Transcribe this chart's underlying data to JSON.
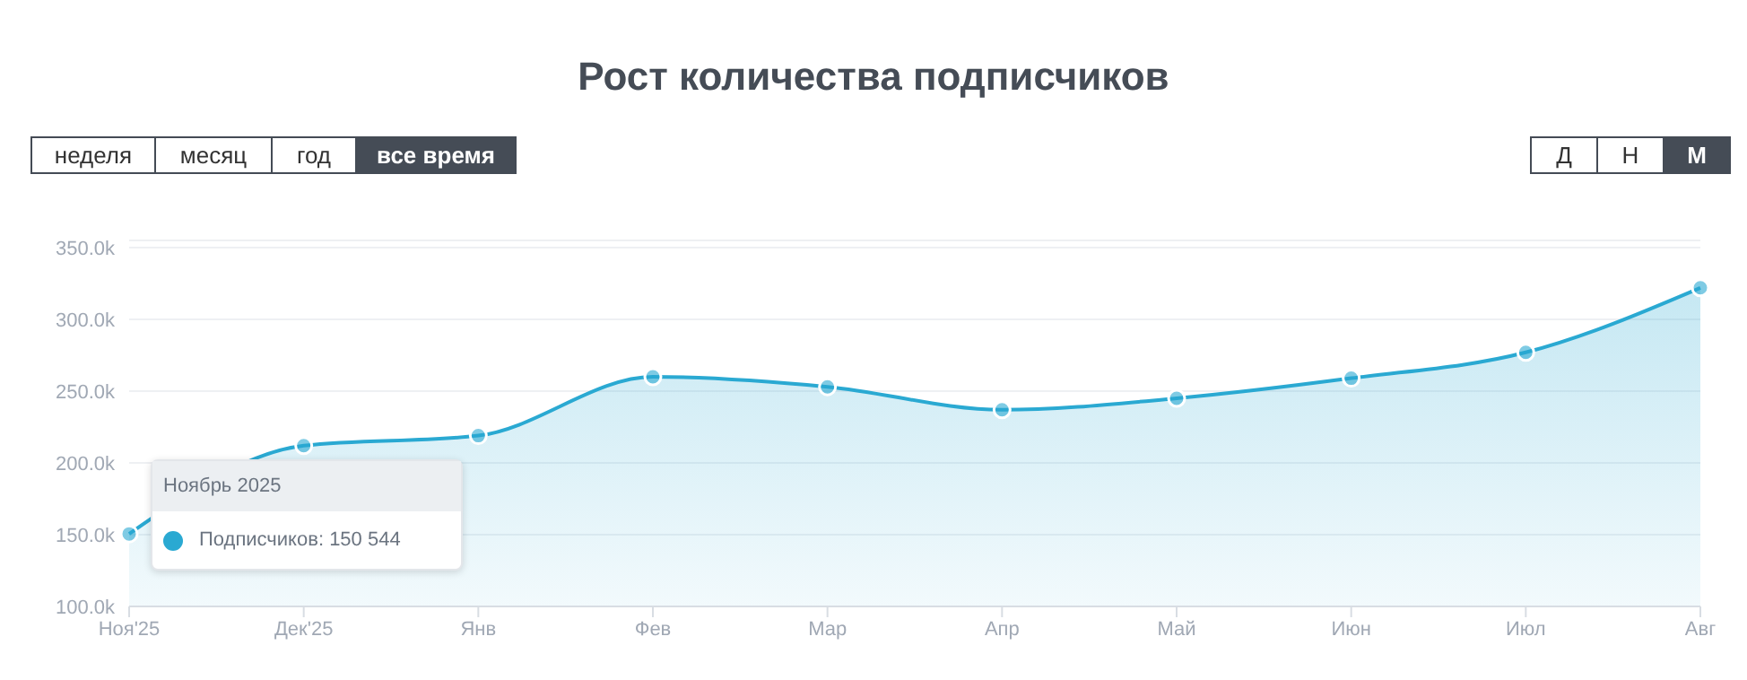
{
  "chart_data": {
    "type": "area",
    "title": "Рост количества подписчиков",
    "categories": [
      "Ноя'25",
      "Дек'25",
      "Янв",
      "Фев",
      "Мар",
      "Апр",
      "Май",
      "Июн",
      "Июл",
      "Авг"
    ],
    "series": [
      {
        "color": "#2aa9d2",
        "values": [
          150.544,
          212,
          219,
          260,
          253,
          237,
          245,
          259,
          277,
          322
        ]
      }
    ],
    "ylim": [
      100,
      355
    ],
    "yticks": [
      {
        "value": 100,
        "label": "100.0k"
      },
      {
        "value": 150,
        "label": "150.0k"
      },
      {
        "value": 200,
        "label": "200.0k"
      },
      {
        "value": 250,
        "label": "250.0k"
      },
      {
        "value": 300,
        "label": "300.0k"
      },
      {
        "value": 350,
        "label": "350.0k"
      }
    ],
    "grid": "y",
    "marker": "circle",
    "annotations": [
      "неделя",
      "месяц",
      "год",
      "все время",
      "Д",
      "Н",
      "М",
      "Ноябрь 2025",
      "Подписчиков: 150 544"
    ]
  }
}
